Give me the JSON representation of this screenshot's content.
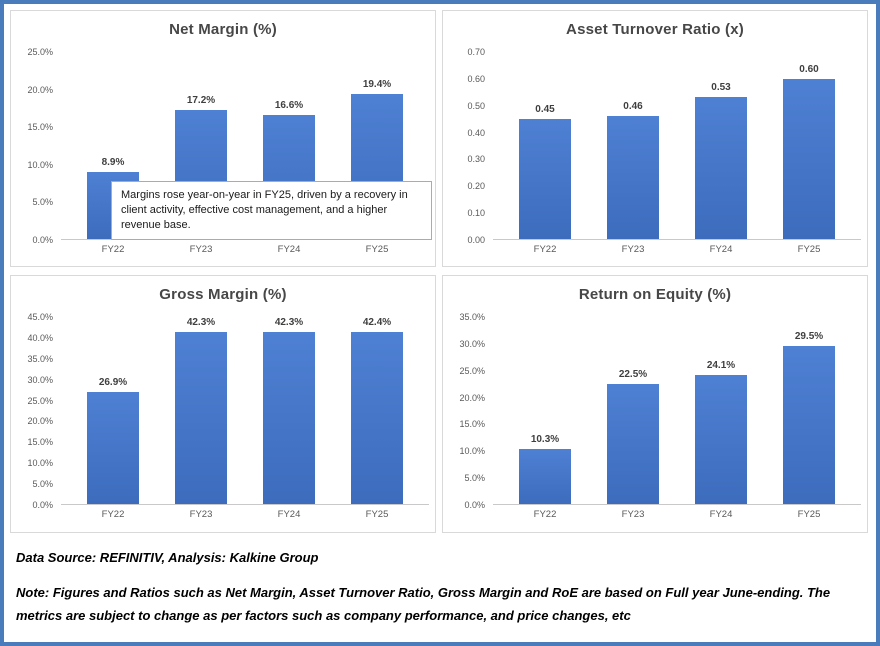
{
  "figure": {
    "annotation": "Margins rose year-on-year in FY25, driven by a recovery in client activity, effective cost management, and a higher revenue base.",
    "footer": {
      "source_line": "Data Source: REFINITIV, Analysis: Kalkine Group",
      "note_line": "Note: Figures and Ratios such as Net Margin, Asset Turnover Ratio, Gross Margin and RoE are based on Full year June-ending. The metrics are subject to change as per factors such as company performance, and price changes, etc"
    },
    "colors": {
      "outer_border": "#4a7bbb",
      "panel_border": "#d9d9d9",
      "bar_top": "#4e80d3",
      "bar_bottom": "#3d6cbd",
      "title_text": "#474747",
      "axis_text": "#595959",
      "label_text": "#3f3f3f"
    }
  },
  "chart_data": [
    {
      "type": "bar",
      "title": "Net Margin (%)",
      "categories": [
        "FY22",
        "FY23",
        "FY24",
        "FY25"
      ],
      "values": [
        8.9,
        17.2,
        16.6,
        19.4
      ],
      "labels": [
        "8.9%",
        "17.2%",
        "16.6%",
        "19.4%"
      ],
      "ylim": [
        0,
        25
      ],
      "yticks": [
        "25.0%",
        "20.0%",
        "15.0%",
        "10.0%",
        "5.0%",
        "0.0%"
      ],
      "xlabel": "",
      "ylabel": "",
      "grid": false,
      "legend": false
    },
    {
      "type": "bar",
      "title": "Asset Turnover Ratio (x)",
      "categories": [
        "FY22",
        "FY23",
        "FY24",
        "FY25"
      ],
      "values": [
        0.45,
        0.46,
        0.53,
        0.6
      ],
      "labels": [
        "0.45",
        "0.46",
        "0.53",
        "0.60"
      ],
      "ylim": [
        0,
        0.7
      ],
      "yticks": [
        "0.70",
        "0.60",
        "0.50",
        "0.40",
        "0.30",
        "0.20",
        "0.10",
        "0.00"
      ],
      "xlabel": "",
      "ylabel": "",
      "grid": false,
      "legend": false
    },
    {
      "type": "bar",
      "title": "Gross Margin (%)",
      "categories": [
        "FY22",
        "FY23",
        "FY24",
        "FY25"
      ],
      "values": [
        26.9,
        42.3,
        42.3,
        42.4
      ],
      "labels": [
        "26.9%",
        "42.3%",
        "42.3%",
        "42.4%"
      ],
      "ylim": [
        0,
        45
      ],
      "yticks": [
        "45.0%",
        "40.0%",
        "35.0%",
        "30.0%",
        "25.0%",
        "20.0%",
        "15.0%",
        "10.0%",
        "5.0%",
        "0.0%"
      ],
      "xlabel": "",
      "ylabel": "",
      "grid": false,
      "legend": false
    },
    {
      "type": "bar",
      "title": "Return on Equity (%)",
      "categories": [
        "FY22",
        "FY23",
        "FY24",
        "FY25"
      ],
      "values": [
        10.3,
        22.5,
        24.1,
        29.5
      ],
      "labels": [
        "10.3%",
        "22.5%",
        "24.1%",
        "29.5%"
      ],
      "ylim": [
        0,
        35
      ],
      "yticks": [
        "35.0%",
        "30.0%",
        "25.0%",
        "20.0%",
        "15.0%",
        "10.0%",
        "5.0%",
        "0.0%"
      ],
      "xlabel": "",
      "ylabel": "",
      "grid": false,
      "legend": false
    }
  ]
}
